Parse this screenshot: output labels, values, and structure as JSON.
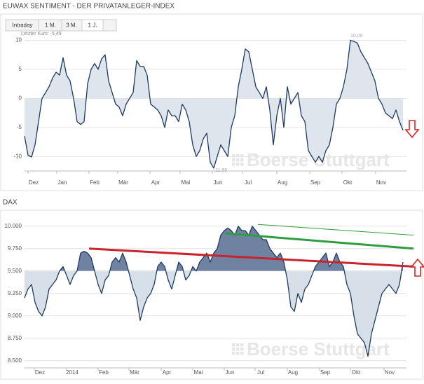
{
  "range_buttons": [
    "Intraday",
    "1 M.",
    "3 M.",
    "1 J."
  ],
  "chart_data": [
    {
      "type": "line",
      "title": "EUWAX SENTIMENT - DER PRIVATANLEGER-INDEX",
      "annotations": [
        "Letzter Kurs: -5,49",
        "10,00",
        "-11,90"
      ],
      "watermark": "Boerse Stuttgart",
      "color": "#1f3a60",
      "fill_color": "#dfe5ec",
      "fill_baseline": 0,
      "grid": true,
      "xlim": [
        0,
        109
      ],
      "ylim": [
        -12.5,
        11.5
      ],
      "yticks": [
        10,
        5,
        0,
        -5,
        -10
      ],
      "xticks": [
        {
          "value": 2.6,
          "label": "Dez"
        },
        {
          "value": 10.8,
          "label": "Jan"
        },
        {
          "value": 20,
          "label": "Feb"
        },
        {
          "value": 28.2,
          "label": "Mär"
        },
        {
          "value": 37.4,
          "label": "Apr"
        },
        {
          "value": 46,
          "label": "Mai"
        },
        {
          "value": 55.2,
          "label": "Jun"
        },
        {
          "value": 63.8,
          "label": "Jul"
        },
        {
          "value": 73.6,
          "label": "Aug"
        },
        {
          "value": 83,
          "label": "Sep"
        },
        {
          "value": 92.2,
          "label": "Okt"
        },
        {
          "value": 101.8,
          "label": "Nov"
        }
      ],
      "x": [
        0,
        1,
        2,
        3,
        4,
        5,
        6,
        7,
        8,
        9,
        10,
        11,
        12,
        13,
        14,
        15,
        16,
        17,
        18,
        19,
        20,
        21,
        22,
        23,
        24,
        25,
        26,
        27,
        28,
        29,
        30,
        31,
        32,
        33,
        34,
        35,
        36,
        37,
        38,
        39,
        40,
        41,
        42,
        43,
        44,
        45,
        46,
        47,
        48,
        49,
        50,
        51,
        52,
        53,
        54,
        55,
        56,
        57,
        58,
        59,
        60,
        61,
        62,
        63,
        64,
        65,
        66,
        67,
        68,
        69,
        70,
        71,
        72,
        73,
        74,
        75,
        76,
        77,
        78,
        79,
        80,
        81,
        82,
        83,
        84,
        85,
        86,
        87,
        88,
        89,
        90,
        91,
        92,
        93,
        94,
        95,
        96,
        97,
        98,
        99,
        100,
        101,
        102,
        103,
        104,
        105,
        106,
        107,
        108
      ],
      "values": [
        -6.5,
        -9.8,
        -10.1,
        -8,
        -4,
        0,
        1,
        2,
        3.5,
        4.5,
        4,
        7,
        4,
        3,
        0,
        -4,
        -4.5,
        -4,
        2.5,
        5,
        6,
        5,
        6.8,
        7.5,
        3,
        1,
        -1,
        -1.5,
        -3,
        -1,
        0,
        1,
        6.5,
        5.5,
        5.5,
        4,
        -1,
        -1.5,
        -2,
        -3,
        -5,
        -2,
        -3,
        -3,
        -4,
        -1,
        -2,
        -4,
        -8,
        -10,
        -9,
        -7,
        -6,
        -11,
        -12,
        -10,
        -8,
        -9,
        -10,
        -5,
        -3,
        2,
        5,
        8.5,
        8,
        5,
        2,
        1,
        0,
        2,
        -2,
        -8,
        -3,
        0,
        -5,
        2,
        -1,
        0,
        1,
        -3,
        -4,
        -9,
        -10,
        -11,
        -10,
        -11,
        -9,
        -8,
        -5,
        -1,
        0,
        2,
        5,
        10,
        9.8,
        9.5,
        8,
        7,
        6,
        4.5,
        3,
        0,
        -1,
        -2.5,
        -3,
        -3.5,
        -2,
        -4,
        -5.5
      ]
    },
    {
      "type": "line",
      "title": "DAX",
      "watermark": "Boerse Stuttgart",
      "color": "#1f3a60",
      "fill_color_above": "#6f82a1",
      "fill_color_below": "#d7dfe8",
      "fill_baseline": 9500,
      "grid": true,
      "xlim": [
        0,
        109
      ],
      "ylim": [
        8420,
        10100
      ],
      "yticks": [
        {
          "value": 10000,
          "label": "10.000"
        },
        {
          "value": 9750,
          "label": "9.750"
        },
        {
          "value": 9500,
          "label": "9.500"
        },
        {
          "value": 9250,
          "label": "9.250"
        },
        {
          "value": 9000,
          "label": "9.000"
        },
        {
          "value": 8750,
          "label": "8.750"
        },
        {
          "value": 8500,
          "label": "8.500"
        }
      ],
      "xticks": [
        {
          "value": 4.4,
          "label": "Dez"
        },
        {
          "value": 13.6,
          "label": "2014"
        },
        {
          "value": 22.6,
          "label": "Feb"
        },
        {
          "value": 31.4,
          "label": "Mär"
        },
        {
          "value": 40.6,
          "label": "Apr"
        },
        {
          "value": 49.6,
          "label": "Mai"
        },
        {
          "value": 58.6,
          "label": "Jun"
        },
        {
          "value": 67.4,
          "label": "Jul"
        },
        {
          "value": 76.6,
          "label": "Aug"
        },
        {
          "value": 85.8,
          "label": "Sep"
        },
        {
          "value": 94.6,
          "label": "Okt"
        },
        {
          "value": 104.2,
          "label": "Nov"
        }
      ],
      "trendlines": [
        {
          "color": "#c8242b",
          "style": "thick",
          "x": [
            18.4,
            109
          ],
          "y": [
            9750,
            9550
          ]
        },
        {
          "color": "#2e9e3e",
          "style": "thick",
          "x": [
            57.4,
            109
          ],
          "y": [
            9920,
            9750
          ]
        },
        {
          "color": "#2e9e3e",
          "style": "thin",
          "x": [
            66.6,
            109
          ],
          "y": [
            10020,
            9900
          ]
        }
      ],
      "x": [
        0,
        1,
        2,
        3,
        4,
        5,
        6,
        7,
        8,
        9,
        10,
        11,
        12,
        13,
        14,
        15,
        16,
        17,
        18,
        19,
        20,
        21,
        22,
        23,
        24,
        25,
        26,
        27,
        28,
        29,
        30,
        31,
        32,
        33,
        34,
        35,
        36,
        37,
        38,
        39,
        40,
        41,
        42,
        43,
        44,
        45,
        46,
        47,
        48,
        49,
        50,
        51,
        52,
        53,
        54,
        55,
        56,
        57,
        58,
        59,
        60,
        61,
        62,
        63,
        64,
        65,
        66,
        67,
        68,
        69,
        70,
        71,
        72,
        73,
        74,
        75,
        76,
        77,
        78,
        79,
        80,
        81,
        82,
        83,
        84,
        85,
        86,
        87,
        88,
        89,
        90,
        91,
        92,
        93,
        94,
        95,
        96,
        97,
        98,
        99,
        100,
        101,
        102,
        103,
        104,
        105,
        106,
        107,
        108
      ],
      "values": [
        9200,
        9300,
        9350,
        9150,
        9050,
        9000,
        9100,
        9300,
        9350,
        9400,
        9500,
        9550,
        9450,
        9350,
        9450,
        9500,
        9700,
        9720,
        9700,
        9650,
        9500,
        9350,
        9250,
        9400,
        9450,
        9600,
        9650,
        9600,
        9700,
        9600,
        9450,
        9300,
        9200,
        8950,
        9100,
        9200,
        9250,
        9350,
        9550,
        9600,
        9550,
        9400,
        9300,
        9450,
        9600,
        9550,
        9400,
        9450,
        9550,
        9500,
        9600,
        9650,
        9700,
        9600,
        9700,
        9750,
        9900,
        9950,
        9980,
        9950,
        9900,
        10000,
        9950,
        9950,
        9900,
        10000,
        9950,
        9900,
        9850,
        9850,
        9750,
        9700,
        9650,
        9700,
        9600,
        9400,
        9100,
        9050,
        9250,
        9150,
        9300,
        9350,
        9450,
        9550,
        9600,
        9650,
        9700,
        9550,
        9600,
        9700,
        9600,
        9550,
        9350,
        9250,
        9000,
        8800,
        8750,
        8700,
        8550,
        8800,
        8950,
        9100,
        9250,
        9300,
        9350,
        9300,
        9250,
        9350,
        9600
      ]
    }
  ]
}
